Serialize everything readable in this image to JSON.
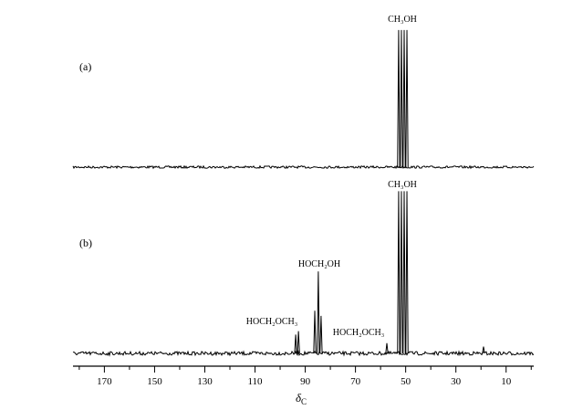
{
  "chart_data": {
    "type": "spectrum",
    "xlim": [
      182.5,
      -1
    ],
    "xticks": [
      170,
      150,
      130,
      110,
      90,
      70,
      50,
      30,
      10
    ],
    "xminorticks": [
      180,
      160,
      140,
      120,
      100,
      80,
      60,
      40,
      20,
      0
    ],
    "xlabel_symbol": "δ",
    "xlabel_subscript": "C",
    "color": "#000000",
    "panels": [
      {
        "label": "(a)",
        "ylim": [
          0,
          100
        ],
        "peaks": {
          "x": [
            52.8,
            51.7,
            50.6,
            49.5
          ],
          "values": [
            95,
            95,
            95,
            95
          ]
        },
        "annotations": [
          "CH₃OH"
        ]
      },
      {
        "label": "(b)",
        "ylim": [
          0,
          100
        ],
        "peaks": {
          "x": [
            93.8,
            92.7,
            86.2,
            84.8,
            83.7,
            57.5,
            52.8,
            51.7,
            50.6,
            49.5,
            19
          ],
          "values": [
            11,
            13,
            25,
            48,
            22,
            6,
            95,
            95,
            95,
            95,
            4
          ]
        },
        "annotations": [
          "CH₃OH",
          "HOCH₂OH",
          "HOCH₂OCH₃",
          "HOCH₂OCH₃"
        ]
      }
    ]
  }
}
